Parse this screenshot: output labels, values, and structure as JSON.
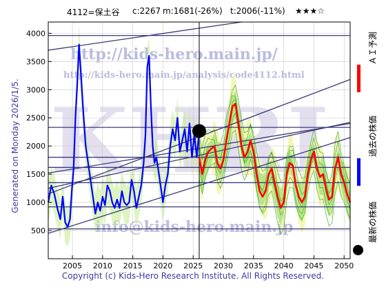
{
  "header": {
    "code_name": "4112=保土谷",
    "current": "c:2267",
    "median": "m:1681(-26%)",
    "target": "t:2006(-11%)",
    "stars": "★★★☆"
  },
  "side_label": "Generated on Monday 2026/1/5.",
  "legend": {
    "ai_forecast": "ＡＩ予測",
    "past_price": "過去の株価",
    "latest_price": "最新の株価",
    "colors": {
      "ai_forecast": "#ff0000",
      "past_price": "#0000ff",
      "latest_price": "#000000"
    }
  },
  "copyright": "Copyright (c) Kids-Hero Research Institute. All Rights Reserved.",
  "watermark": {
    "url": "http://kids-hero.main.jp/",
    "analysis_url": "http://kids-hero.main.jp/analysis/code4112.html",
    "email": "info@kids-hero.main.jp",
    "big_text": "KHRI"
  },
  "chart_data": {
    "type": "line",
    "xlim": [
      2001,
      2051
    ],
    "ylim": [
      0,
      4200
    ],
    "xticks": [
      2005,
      2010,
      2015,
      2020,
      2025,
      2030,
      2035,
      2040,
      2045,
      2050
    ],
    "yticks": [
      500,
      1000,
      1500,
      2000,
      2500,
      3000,
      3500,
      4000
    ],
    "grid": true,
    "current_point": {
      "x": 2026.0,
      "y": 2267
    },
    "current_date_x": 2026.0,
    "horizontal_levels": [
      530,
      920,
      1350,
      1620,
      1800,
      2330,
      3960
    ],
    "trend_lines": [
      {
        "x": [
          2001,
          2033
        ],
        "y": [
          3700,
          4200
        ]
      },
      {
        "x": [
          2001,
          2051
        ],
        "y": [
          1150,
          3180
        ]
      },
      {
        "x": [
          2001,
          2051
        ],
        "y": [
          1520,
          2400
        ]
      },
      {
        "x": [
          2001,
          2051
        ],
        "y": [
          1250,
          2420
        ]
      },
      {
        "x": [
          2001,
          2051
        ],
        "y": [
          450,
          2150
        ]
      }
    ],
    "series": [
      {
        "name": "過去の株価",
        "color": "#0000ff",
        "x": [
          2001.0,
          2001.5,
          2002.0,
          2002.5,
          2003.0,
          2003.4,
          2003.8,
          2004.2,
          2004.6,
          2004.9,
          2005.2,
          2005.5,
          2005.8,
          2006.1,
          2006.4,
          2006.8,
          2007.2,
          2007.6,
          2008.0,
          2008.4,
          2008.8,
          2009.2,
          2009.6,
          2010.0,
          2010.4,
          2010.8,
          2011.2,
          2011.6,
          2012.0,
          2012.4,
          2012.8,
          2013.2,
          2013.6,
          2014.0,
          2014.4,
          2014.8,
          2015.2,
          2015.6,
          2016.0,
          2016.4,
          2016.8,
          2017.1,
          2017.4,
          2017.7,
          2018.0,
          2018.3,
          2018.6,
          2018.9,
          2019.2,
          2019.6,
          2020.0,
          2020.4,
          2020.8,
          2021.2,
          2021.6,
          2022.0,
          2022.4,
          2022.8,
          2023.2,
          2023.6,
          2024.0,
          2024.4,
          2024.8,
          2025.2,
          2025.6,
          2026.0
        ],
        "y": [
          1000,
          1300,
          1150,
          900,
          700,
          1100,
          650,
          560,
          700,
          1200,
          1600,
          2500,
          3100,
          3800,
          3300,
          2600,
          2000,
          1700,
          1400,
          1100,
          800,
          1000,
          850,
          1100,
          950,
          1300,
          1200,
          1000,
          900,
          1050,
          900,
          1200,
          1000,
          950,
          1000,
          1400,
          1200,
          900,
          1100,
          1300,
          1700,
          2200,
          3400,
          3600,
          2700,
          2000,
          1700,
          1800,
          1600,
          1300,
          1000,
          1300,
          1500,
          2000,
          2300,
          2100,
          2500,
          1900,
          2100,
          2300,
          1900,
          2400,
          1800,
          2200,
          1800,
          2267
        ]
      },
      {
        "name": "ＡＩ予測",
        "color": "#ff0000",
        "x": [
          2026.0,
          2026.5,
          2027.0,
          2027.5,
          2028.0,
          2028.5,
          2029.0,
          2029.5,
          2030.0,
          2030.5,
          2031.0,
          2031.5,
          2032.0,
          2032.5,
          2033.0,
          2033.5,
          2034.0,
          2034.5,
          2035.0,
          2035.5,
          2036.0,
          2036.5,
          2037.0,
          2037.5,
          2038.0,
          2038.5,
          2039.0,
          2039.5,
          2040.0,
          2040.5,
          2041.0,
          2041.5,
          2042.0,
          2042.5,
          2043.0,
          2043.5,
          2044.0,
          2044.5,
          2045.0,
          2045.5,
          2046.0,
          2046.5,
          2047.0,
          2047.5,
          2048.0,
          2048.5,
          2049.0,
          2049.5,
          2050.0,
          2050.5,
          2051.0
        ],
        "y": [
          1800,
          1500,
          1750,
          1900,
          1950,
          2000,
          1700,
          1600,
          1750,
          2100,
          2400,
          2700,
          2750,
          2400,
          2000,
          1800,
          1900,
          2100,
          1900,
          1500,
          1200,
          1100,
          1200,
          1500,
          1600,
          1350,
          1100,
          900,
          1000,
          1500,
          1700,
          1650,
          1300,
          1100,
          1000,
          1100,
          1500,
          1750,
          1900,
          1600,
          1450,
          1500,
          1250,
          1050,
          1100,
          1600,
          1800,
          1500,
          1350,
          1150,
          1000
        ]
      }
    ]
  }
}
